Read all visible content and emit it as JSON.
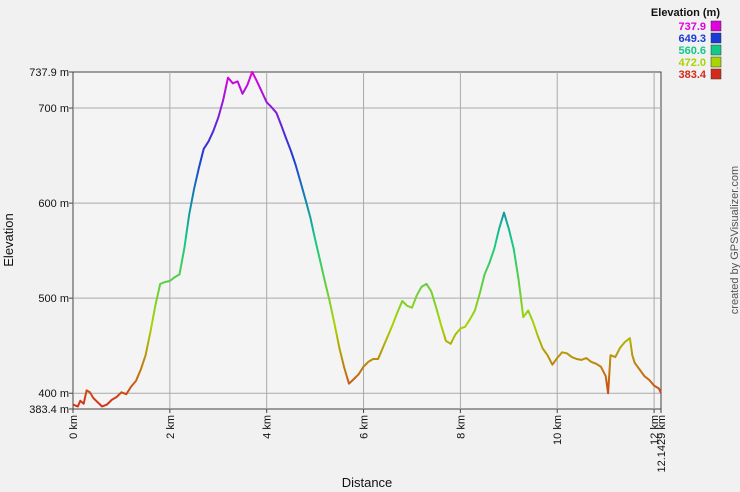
{
  "chart_data": {
    "type": "line",
    "xlabel": "Distance",
    "ylabel": "Elevation",
    "xlim": [
      0,
      12.1429
    ],
    "ylim": [
      383.4,
      737.9
    ],
    "x_ticks": [
      {
        "value": 0,
        "label": "0 km"
      },
      {
        "value": 2,
        "label": "2 km"
      },
      {
        "value": 4,
        "label": "4 km"
      },
      {
        "value": 6,
        "label": "6 km"
      },
      {
        "value": 8,
        "label": "8 km"
      },
      {
        "value": 10,
        "label": "10 km"
      },
      {
        "value": 12,
        "label": "12 km"
      },
      {
        "value": 12.1429,
        "label": "12.1429 km"
      }
    ],
    "y_ticks": [
      {
        "value": 383.4,
        "label": "383.4 m"
      },
      {
        "value": 400,
        "label": "400 m"
      },
      {
        "value": 500,
        "label": "500 m"
      },
      {
        "value": 600,
        "label": "600 m"
      },
      {
        "value": 700,
        "label": "700 m"
      },
      {
        "value": 737.9,
        "label": "737.9 m"
      }
    ],
    "grid": true,
    "legend": {
      "title": "Elevation (m)",
      "position": "top-right",
      "entries": [
        {
          "label": "737.9",
          "color": "#e000e0"
        },
        {
          "label": "649.3",
          "color": "#1a3ad8"
        },
        {
          "label": "560.6",
          "color": "#12c987"
        },
        {
          "label": "472.0",
          "color": "#a8d400"
        },
        {
          "label": "383.4",
          "color": "#d42a1a"
        }
      ]
    },
    "series": [
      {
        "points": [
          [
            0.0,
            388
          ],
          [
            0.1,
            386
          ],
          [
            0.15,
            392
          ],
          [
            0.22,
            389
          ],
          [
            0.28,
            403
          ],
          [
            0.35,
            401
          ],
          [
            0.42,
            395
          ],
          [
            0.5,
            391
          ],
          [
            0.6,
            386
          ],
          [
            0.7,
            388
          ],
          [
            0.8,
            393
          ],
          [
            0.9,
            396
          ],
          [
            1.0,
            401
          ],
          [
            1.1,
            399
          ],
          [
            1.2,
            407
          ],
          [
            1.3,
            413
          ],
          [
            1.4,
            425
          ],
          [
            1.5,
            440
          ],
          [
            1.6,
            465
          ],
          [
            1.7,
            492
          ],
          [
            1.8,
            515
          ],
          [
            1.9,
            517
          ],
          [
            2.0,
            518
          ],
          [
            2.1,
            522
          ],
          [
            2.2,
            525
          ],
          [
            2.3,
            553
          ],
          [
            2.4,
            588
          ],
          [
            2.5,
            615
          ],
          [
            2.6,
            637
          ],
          [
            2.7,
            657
          ],
          [
            2.8,
            665
          ],
          [
            2.9,
            676
          ],
          [
            3.0,
            690
          ],
          [
            3.1,
            708
          ],
          [
            3.2,
            732
          ],
          [
            3.3,
            726
          ],
          [
            3.4,
            728
          ],
          [
            3.5,
            715
          ],
          [
            3.6,
            724
          ],
          [
            3.7,
            738
          ],
          [
            3.8,
            728
          ],
          [
            3.9,
            717
          ],
          [
            4.0,
            706
          ],
          [
            4.1,
            701
          ],
          [
            4.2,
            695
          ],
          [
            4.3,
            682
          ],
          [
            4.4,
            668
          ],
          [
            4.5,
            655
          ],
          [
            4.6,
            640
          ],
          [
            4.7,
            622
          ],
          [
            4.8,
            604
          ],
          [
            4.9,
            585
          ],
          [
            5.0,
            562
          ],
          [
            5.1,
            540
          ],
          [
            5.2,
            518
          ],
          [
            5.3,
            497
          ],
          [
            5.4,
            473
          ],
          [
            5.5,
            448
          ],
          [
            5.6,
            427
          ],
          [
            5.7,
            410
          ],
          [
            5.8,
            415
          ],
          [
            5.9,
            420
          ],
          [
            6.0,
            428
          ],
          [
            6.1,
            433
          ],
          [
            6.2,
            436
          ],
          [
            6.3,
            436
          ],
          [
            6.4,
            448
          ],
          [
            6.5,
            460
          ],
          [
            6.6,
            472
          ],
          [
            6.7,
            485
          ],
          [
            6.8,
            497
          ],
          [
            6.9,
            492
          ],
          [
            7.0,
            490
          ],
          [
            7.1,
            503
          ],
          [
            7.2,
            512
          ],
          [
            7.3,
            515
          ],
          [
            7.4,
            507
          ],
          [
            7.5,
            490
          ],
          [
            7.6,
            472
          ],
          [
            7.7,
            455
          ],
          [
            7.8,
            452
          ],
          [
            7.9,
            462
          ],
          [
            8.0,
            468
          ],
          [
            8.1,
            470
          ],
          [
            8.2,
            478
          ],
          [
            8.3,
            487
          ],
          [
            8.4,
            505
          ],
          [
            8.5,
            525
          ],
          [
            8.6,
            537
          ],
          [
            8.7,
            552
          ],
          [
            8.8,
            573
          ],
          [
            8.9,
            590
          ],
          [
            9.0,
            573
          ],
          [
            9.1,
            552
          ],
          [
            9.2,
            520
          ],
          [
            9.3,
            480
          ],
          [
            9.4,
            487
          ],
          [
            9.5,
            475
          ],
          [
            9.6,
            460
          ],
          [
            9.7,
            447
          ],
          [
            9.8,
            440
          ],
          [
            9.9,
            430
          ],
          [
            10.0,
            437
          ],
          [
            10.1,
            443
          ],
          [
            10.2,
            442
          ],
          [
            10.3,
            438
          ],
          [
            10.4,
            436
          ],
          [
            10.5,
            435
          ],
          [
            10.6,
            437
          ],
          [
            10.7,
            433
          ],
          [
            10.8,
            431
          ],
          [
            10.9,
            428
          ],
          [
            11.0,
            418
          ],
          [
            11.05,
            400
          ],
          [
            11.1,
            440
          ],
          [
            11.2,
            438
          ],
          [
            11.3,
            448
          ],
          [
            11.4,
            454
          ],
          [
            11.5,
            458
          ],
          [
            11.55,
            440
          ],
          [
            11.6,
            432
          ],
          [
            11.7,
            425
          ],
          [
            11.8,
            418
          ],
          [
            11.9,
            414
          ],
          [
            12.0,
            408
          ],
          [
            12.1,
            405
          ],
          [
            12.1429,
            400
          ]
        ]
      }
    ]
  },
  "credit": "created by GPSVisualizer.com"
}
